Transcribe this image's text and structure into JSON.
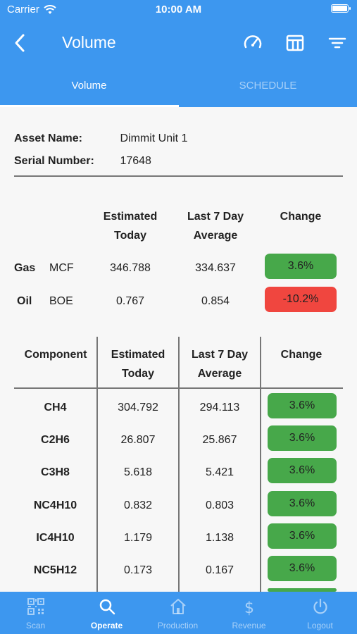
{
  "status": {
    "carrier": "Carrier",
    "time": "10:00 AM",
    "battery_level": 1.0
  },
  "nav": {
    "title": "Volume",
    "icons": [
      "back-chevron-icon",
      "gauge-icon",
      "table-icon",
      "filter-icon"
    ]
  },
  "tabs": [
    {
      "label": "Volume",
      "active": true
    },
    {
      "label": "SCHEDULE",
      "active": false
    }
  ],
  "asset": {
    "name_label": "Asset Name:",
    "name_value": "Dimmit Unit 1",
    "serial_label": "Serial Number:",
    "serial_value": "17648"
  },
  "summary": {
    "headers": {
      "estimated_1": "Estimated",
      "estimated_2": "Today",
      "avg_1": "Last 7 Day",
      "avg_2": "Average",
      "change": "Change"
    },
    "rows": [
      {
        "name": "Gas",
        "unit": "MCF",
        "estimated": "346.788",
        "average": "334.637",
        "change": "3.6%",
        "status": "positive"
      },
      {
        "name": "Oil",
        "unit": "BOE",
        "estimated": "0.767",
        "average": "0.854",
        "change": "-10.2%",
        "status": "negative"
      }
    ]
  },
  "components": {
    "headers": {
      "component": "Component",
      "estimated_1": "Estimated",
      "estimated_2": "Today",
      "avg_1": "Last 7 Day",
      "avg_2": "Average",
      "change": "Change"
    },
    "rows": [
      {
        "name": "CH4",
        "estimated": "304.792",
        "average": "294.113",
        "change": "3.6%"
      },
      {
        "name": "C2H6",
        "estimated": "26.807",
        "average": "25.867",
        "change": "3.6%"
      },
      {
        "name": "C3H8",
        "estimated": "5.618",
        "average": "5.421",
        "change": "3.6%"
      },
      {
        "name": "NC4H10",
        "estimated": "0.832",
        "average": "0.803",
        "change": "3.6%"
      },
      {
        "name": "IC4H10",
        "estimated": "1.179",
        "average": "1.138",
        "change": "3.6%"
      },
      {
        "name": "NC5H12",
        "estimated": "0.173",
        "average": "0.167",
        "change": "3.6%"
      }
    ]
  },
  "colors": {
    "header": "#3d97ef",
    "positive": "#47a84a",
    "negative": "#f0463f"
  },
  "bottom_nav": [
    {
      "label": "Scan",
      "icon": "qr-code-icon",
      "active": false
    },
    {
      "label": "Operate",
      "icon": "search-icon",
      "active": true
    },
    {
      "label": "Production",
      "icon": "home-icon",
      "active": false
    },
    {
      "label": "Revenue",
      "icon": "dollar-icon",
      "active": false
    },
    {
      "label": "Logout",
      "icon": "power-icon",
      "active": false
    }
  ]
}
